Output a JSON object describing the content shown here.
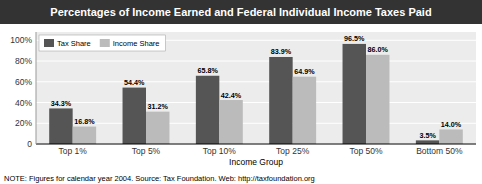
{
  "chart_data": {
    "type": "bar",
    "title": "Percentages of Income Earned and Federal Individual Income Taxes Paid",
    "categories": [
      "Top 1%",
      "Top 5%",
      "Top 10%",
      "Top 25%",
      "Top 50%",
      "Bottom 50%"
    ],
    "series": [
      {
        "name": "Tax Share",
        "color": "#555555",
        "values": [
          34.3,
          54.4,
          65.8,
          83.9,
          96.5,
          3.5
        ],
        "value_labels": [
          "34.3%",
          "54.4%",
          "65.8%",
          "83.9%",
          "96.5%",
          "3.5%"
        ]
      },
      {
        "name": "Income Share",
        "color": "#bbbbbb",
        "values": [
          16.8,
          31.2,
          42.4,
          64.9,
          86.0,
          14.0
        ],
        "value_labels": [
          "16.8%",
          "31.2%",
          "42.4%",
          "64.9%",
          "86.0%",
          "14.0%"
        ]
      }
    ],
    "xlabel": "Income Group",
    "ylim": [
      0,
      108
    ],
    "yticks": [
      0,
      {
        "value": 20,
        "label": "20%"
      },
      {
        "value": 40,
        "label": "40%"
      },
      {
        "value": 60,
        "label": "60%"
      },
      {
        "value": 80,
        "label": "80%"
      },
      {
        "value": 100,
        "label": "100%"
      }
    ],
    "grid": true,
    "legend": "upper left",
    "data_labels": true,
    "annotations": [
      "NOTE: Figures for calendar year 2004. Source: Tax Foundation. Web: http://taxfoundation.org"
    ]
  }
}
